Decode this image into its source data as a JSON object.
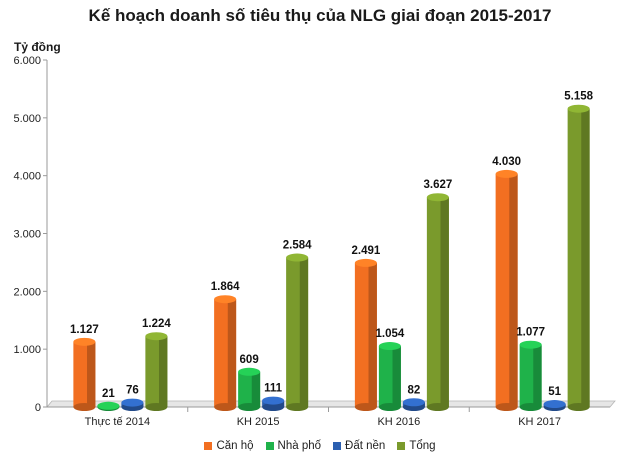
{
  "chart_data": {
    "type": "bar",
    "title": "Kế hoạch doanh số tiêu thụ của NLG giai đoạn 2015-2017",
    "ylabel": "Tỷ đồng",
    "xlabel": "",
    "ylim": [
      0,
      6000
    ],
    "y_ticks": [
      "0",
      "1.000",
      "2.000",
      "3.000",
      "4.000",
      "5.000",
      "6.000"
    ],
    "categories": [
      "Thực tế 2014",
      "KH 2015",
      "KH 2016",
      "KH 2017"
    ],
    "series": [
      {
        "name": "Căn hộ",
        "color": "#f26f21",
        "values": [
          1127,
          1864,
          2491,
          4030
        ],
        "labels": [
          "1.127",
          "1.864",
          "2.491",
          "4.030"
        ]
      },
      {
        "name": "Nhà phố",
        "color": "#1fb24a",
        "values": [
          21,
          609,
          1054,
          1077
        ],
        "labels": [
          "21",
          "609",
          "1.054",
          "1.077"
        ]
      },
      {
        "name": "Đất nền",
        "color": "#2b5fb0",
        "values": [
          76,
          111,
          82,
          51
        ],
        "labels": [
          "76",
          "111",
          "82",
          "51"
        ]
      },
      {
        "name": "Tổng",
        "color": "#7a9a2c",
        "values": [
          1224,
          2584,
          3627,
          5158
        ],
        "labels": [
          "1.224",
          "2.584",
          "3.627",
          "5.158"
        ]
      }
    ],
    "grid": false,
    "legend_position": "bottom"
  }
}
